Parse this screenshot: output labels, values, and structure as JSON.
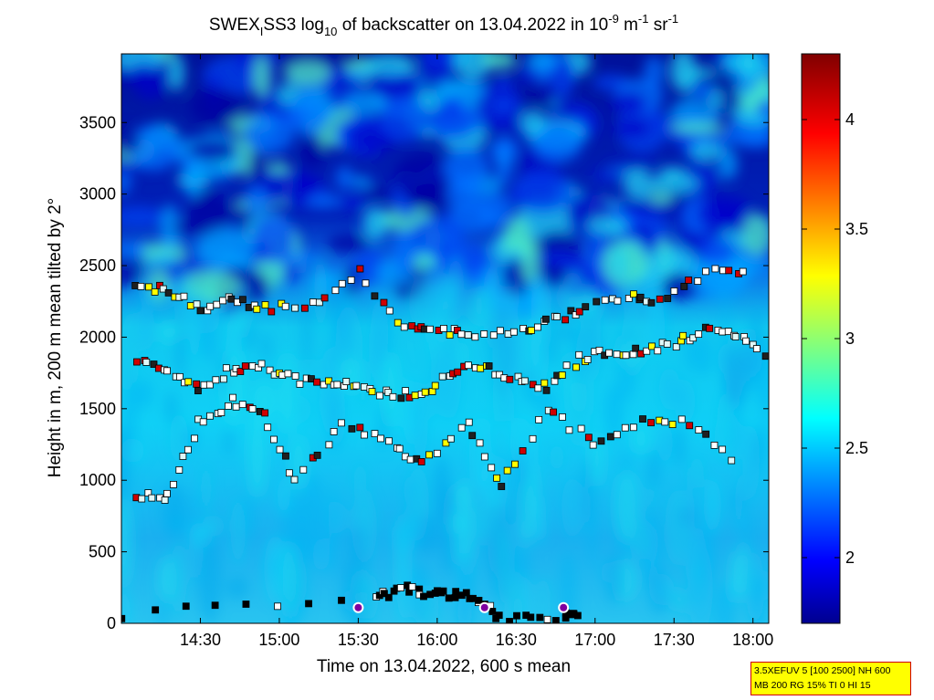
{
  "chart_data": {
    "type": "heatmap",
    "title": {
      "part1": "SWEX",
      "sub1": "I",
      "part2": "SS3 log",
      "sub2": "10",
      "part3": " of backscatter on 13.04.2022 in 10",
      "sup1": "-9",
      "part4": " m",
      "sup2": "-1",
      "part5": " sr",
      "sup3": "-1"
    },
    "xlabel": "Time on 13.04.2022, 600 s mean",
    "ylabel": "Height in m, 200 m mean tilted by 2°",
    "x_range_hours": [
      14.0,
      18.1
    ],
    "x_ticks": [
      {
        "value": 14.5,
        "label": "14:30"
      },
      {
        "value": 15.0,
        "label": "15:00"
      },
      {
        "value": 15.5,
        "label": "15:30"
      },
      {
        "value": 16.0,
        "label": "16:00"
      },
      {
        "value": 16.5,
        "label": "16:30"
      },
      {
        "value": 17.0,
        "label": "17:00"
      },
      {
        "value": 17.5,
        "label": "17:30"
      },
      {
        "value": 18.0,
        "label": "18:00"
      }
    ],
    "y_range": [
      0,
      3980
    ],
    "y_ticks": [
      0,
      500,
      1000,
      1500,
      2000,
      2500,
      3000,
      3500
    ],
    "colorbar": {
      "range": [
        1.7,
        4.3
      ],
      "ticks": [
        2,
        2.5,
        3,
        3.5,
        4
      ],
      "colormap": "jet"
    },
    "cloud_layers": [
      {
        "name": "top",
        "points": [
          [
            14.1,
            2350
          ],
          [
            14.3,
            2330
          ],
          [
            14.5,
            2200
          ],
          [
            14.7,
            2270
          ],
          [
            14.9,
            2200
          ],
          [
            15.2,
            2220
          ],
          [
            15.5,
            2450
          ],
          [
            15.8,
            2050
          ],
          [
            16.0,
            2060
          ],
          [
            16.2,
            2000
          ],
          [
            16.5,
            2050
          ],
          [
            16.7,
            2100
          ],
          [
            16.9,
            2200
          ],
          [
            17.2,
            2300
          ],
          [
            17.4,
            2250
          ],
          [
            17.7,
            2450
          ],
          [
            18.0,
            2440
          ]
        ]
      },
      {
        "name": "mid",
        "points": [
          [
            14.1,
            1850
          ],
          [
            14.3,
            1750
          ],
          [
            14.5,
            1650
          ],
          [
            14.7,
            1780
          ],
          [
            14.9,
            1800
          ],
          [
            15.1,
            1700
          ],
          [
            15.3,
            1680
          ],
          [
            15.5,
            1650
          ],
          [
            15.7,
            1600
          ],
          [
            15.9,
            1600
          ],
          [
            16.1,
            1750
          ],
          [
            16.3,
            1800
          ],
          [
            16.5,
            1700
          ],
          [
            16.7,
            1650
          ],
          [
            16.9,
            1850
          ],
          [
            17.1,
            1900
          ],
          [
            17.3,
            1900
          ],
          [
            17.5,
            1950
          ],
          [
            17.7,
            2050
          ],
          [
            17.9,
            2000
          ],
          [
            18.1,
            1850
          ]
        ]
      },
      {
        "name": "lower",
        "points": [
          [
            14.1,
            900
          ],
          [
            14.3,
            880
          ],
          [
            14.5,
            1400
          ],
          [
            14.7,
            1550
          ],
          [
            14.9,
            1450
          ],
          [
            15.1,
            1000
          ],
          [
            15.4,
            1400
          ],
          [
            15.7,
            1250
          ],
          [
            15.9,
            1100
          ],
          [
            16.2,
            1400
          ],
          [
            16.4,
            950
          ],
          [
            16.7,
            1500
          ],
          [
            17.0,
            1250
          ],
          [
            17.3,
            1400
          ],
          [
            17.6,
            1400
          ],
          [
            17.9,
            1080
          ]
        ]
      },
      {
        "name": "bottom",
        "points": [
          [
            14.0,
            60
          ],
          [
            15.6,
            180
          ],
          [
            15.8,
            240
          ],
          [
            16.0,
            200
          ],
          [
            16.2,
            200
          ],
          [
            16.4,
            30
          ],
          [
            16.8,
            50
          ],
          [
            16.9,
            60
          ]
        ]
      }
    ],
    "grid": false,
    "legend_placement": "right-colorbar"
  },
  "info_box": {
    "line1": "3.5XEFUV 5 [100 2500] NH 600",
    "line2": "MB 200 RG 15% TI 0 HI 15"
  }
}
